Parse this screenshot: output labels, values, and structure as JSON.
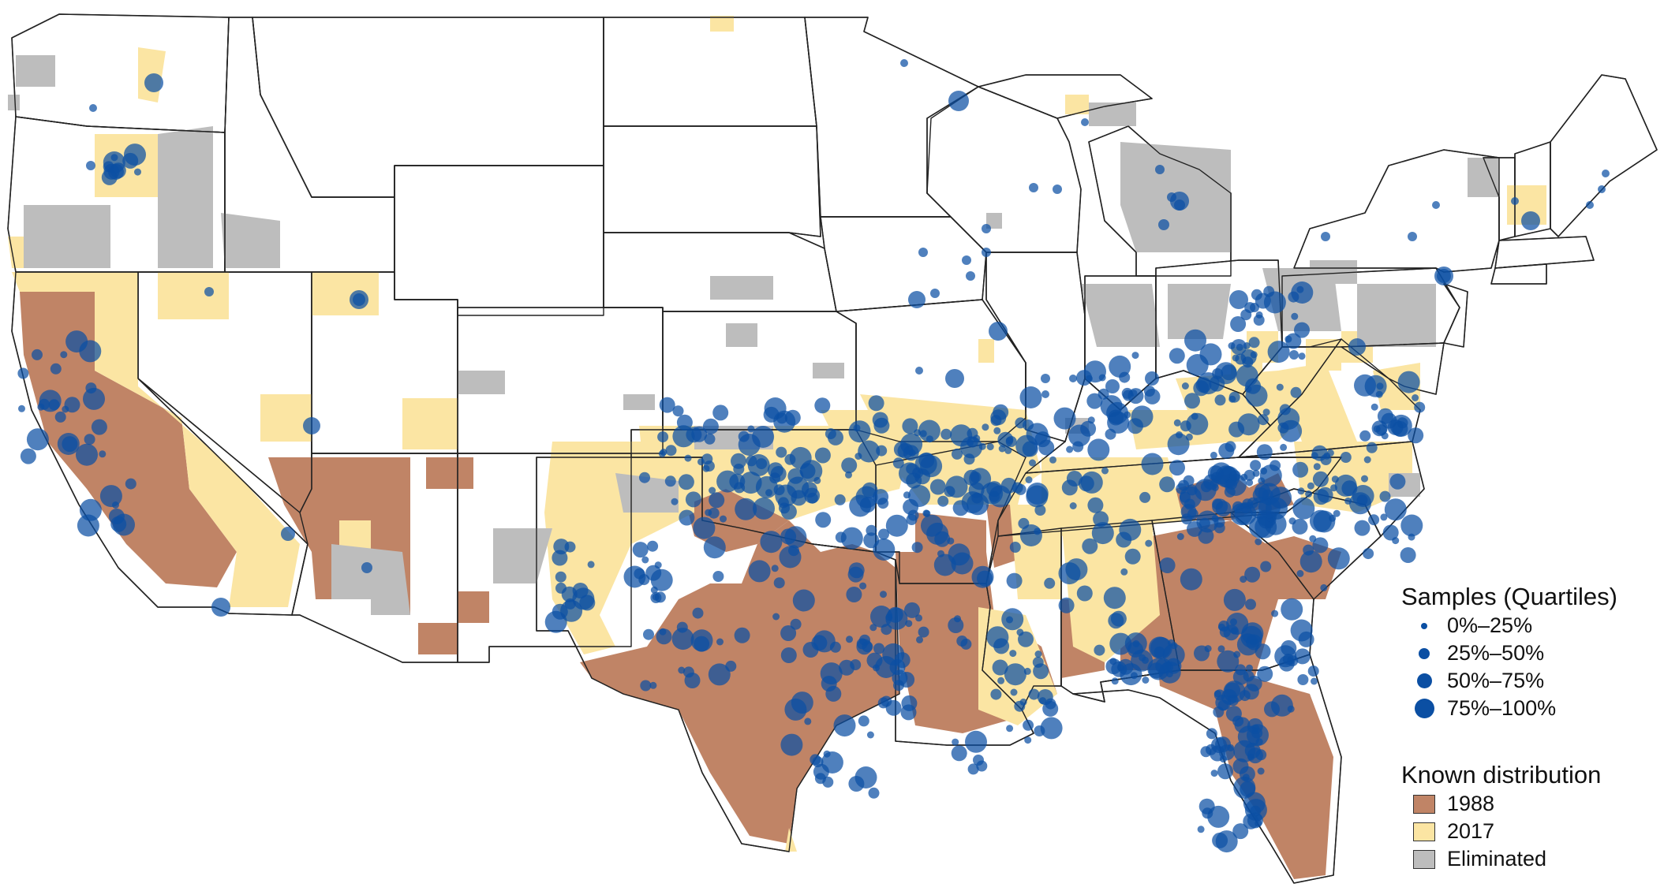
{
  "legend": {
    "samples_title": "Samples (Quartiles)",
    "samples": [
      {
        "label": "0%–25%"
      },
      {
        "label": "25%–50%"
      },
      {
        "label": "50%–75%"
      },
      {
        "label": "75%–100%"
      }
    ],
    "distribution_title": "Known distribution",
    "distribution": [
      {
        "label": "1988",
        "color": "#c08466"
      },
      {
        "label": "2017",
        "color": "#fbe5a3"
      },
      {
        "label": "Eliminated",
        "color": "#bdbdbd"
      }
    ]
  },
  "colors": {
    "sample_point": "#0b4fa3",
    "state_border": "#222222",
    "background": "#ffffff"
  }
}
